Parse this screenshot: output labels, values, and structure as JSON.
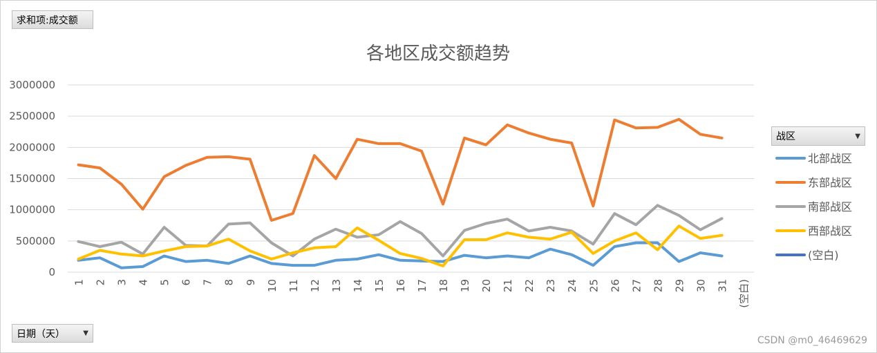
{
  "value_field": {
    "label": "求和项:成交额"
  },
  "axis_field": {
    "label": "日期（天）",
    "caret_icon": "dropdown-arrow-icon"
  },
  "legend_field": {
    "label": "战区",
    "caret_icon": "dropdown-arrow-icon"
  },
  "watermark": "CSDN @m0_46469629",
  "chart_data": {
    "type": "line",
    "title": "各地区成交额趋势",
    "xlabel": "",
    "ylabel": "",
    "ylim": [
      0,
      3000000
    ],
    "yticks": [
      0,
      500000,
      1000000,
      1500000,
      2000000,
      2500000,
      3000000
    ],
    "ytick_labels": [
      "0",
      "500000",
      "1000000",
      "1500000",
      "2000000",
      "2500000",
      "3000000"
    ],
    "grid": true,
    "legend_position": "right",
    "categories": [
      "1",
      "2",
      "3",
      "4",
      "5",
      "6",
      "7",
      "8",
      "9",
      "10",
      "11",
      "12",
      "13",
      "14",
      "15",
      "16",
      "17",
      "18",
      "19",
      "20",
      "21",
      "22",
      "23",
      "24",
      "25",
      "26",
      "27",
      "28",
      "29",
      "30",
      "31",
      "(空白)"
    ],
    "series": [
      {
        "name": "北部战区",
        "color": "#5b9bd5",
        "values": [
          190000,
          230000,
          70000,
          90000,
          260000,
          170000,
          190000,
          140000,
          260000,
          140000,
          110000,
          110000,
          190000,
          210000,
          280000,
          190000,
          180000,
          170000,
          270000,
          230000,
          260000,
          230000,
          370000,
          280000,
          110000,
          410000,
          470000,
          470000,
          170000,
          310000,
          260000,
          null
        ]
      },
      {
        "name": "东部战区",
        "color": "#ed7d31",
        "values": [
          1720000,
          1670000,
          1410000,
          1010000,
          1530000,
          1710000,
          1840000,
          1850000,
          1810000,
          830000,
          940000,
          1870000,
          1500000,
          2130000,
          2060000,
          2060000,
          1940000,
          1090000,
          2150000,
          2040000,
          2360000,
          2230000,
          2130000,
          2070000,
          1060000,
          2440000,
          2310000,
          2320000,
          2450000,
          2210000,
          2150000,
          null
        ]
      },
      {
        "name": "南部战区",
        "color": "#a5a5a5",
        "values": [
          490000,
          410000,
          480000,
          290000,
          720000,
          430000,
          420000,
          770000,
          790000,
          470000,
          260000,
          530000,
          690000,
          560000,
          600000,
          810000,
          620000,
          260000,
          670000,
          780000,
          850000,
          660000,
          720000,
          660000,
          450000,
          940000,
          760000,
          1070000,
          910000,
          680000,
          860000,
          null
        ]
      },
      {
        "name": "西部战区",
        "color": "#ffc000",
        "values": [
          210000,
          350000,
          290000,
          260000,
          340000,
          410000,
          420000,
          530000,
          340000,
          210000,
          310000,
          390000,
          410000,
          710000,
          510000,
          300000,
          220000,
          100000,
          520000,
          520000,
          630000,
          560000,
          530000,
          640000,
          300000,
          500000,
          630000,
          360000,
          740000,
          540000,
          590000,
          null
        ]
      },
      {
        "name": "(空白)",
        "color": "#4472c4",
        "values": [
          null,
          null,
          null,
          null,
          null,
          null,
          null,
          null,
          null,
          null,
          null,
          null,
          null,
          null,
          null,
          null,
          null,
          null,
          null,
          null,
          null,
          null,
          null,
          null,
          null,
          null,
          null,
          null,
          null,
          null,
          null,
          null
        ]
      }
    ]
  }
}
